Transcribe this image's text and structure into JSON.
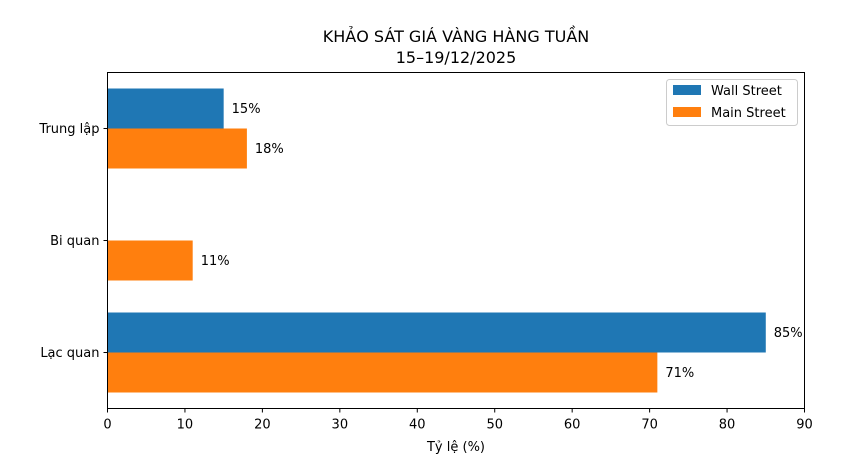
{
  "chart_data": {
    "type": "bar",
    "orientation": "horizontal",
    "title": "KHẢO SÁT GIÁ VÀNG HÀNG TUẦN",
    "subtitle": "15–19/12/2025",
    "xlabel": "Tỷ lệ (%)",
    "ylabel": "",
    "xlim": [
      0,
      90
    ],
    "xticks": [
      0,
      10,
      20,
      30,
      40,
      50,
      60,
      70,
      80,
      90
    ],
    "categories": [
      "Trung lập",
      "Bi quan",
      "Lạc quan"
    ],
    "series": [
      {
        "name": "Wall Street",
        "color": "#1f77b4",
        "values": [
          15,
          null,
          85
        ],
        "labels": [
          "15%",
          "",
          "85%"
        ]
      },
      {
        "name": "Main Street",
        "color": "#ff7f0e",
        "values": [
          18,
          11,
          71
        ],
        "labels": [
          "18%",
          "11%",
          "71%"
        ]
      }
    ],
    "legend_position": "top-right",
    "grid": false
  }
}
